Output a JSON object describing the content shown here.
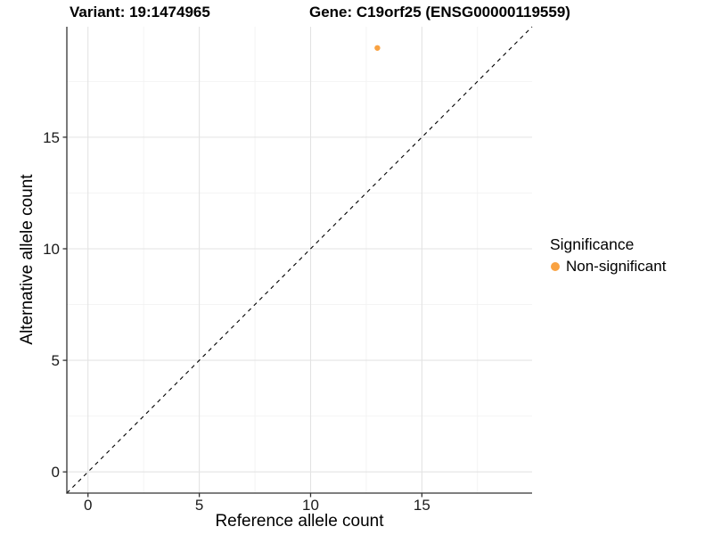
{
  "header": {
    "variant_title": "Variant: 19:1474965",
    "gene_title": "Gene: C19orf25 (ENSG00000119559)"
  },
  "chart_data": {
    "type": "scatter",
    "title": "Variant: 19:1474965   Gene: C19orf25 (ENSG00000119559)",
    "xlabel": "Reference allele count",
    "ylabel": "Alternative allele count",
    "xlim": [
      -0.95,
      19.95
    ],
    "ylim": [
      -0.95,
      19.95
    ],
    "xticks": [
      0,
      5,
      10,
      15
    ],
    "yticks": [
      0,
      5,
      10,
      15
    ],
    "minor_ticks_x": [
      2.5,
      7.5,
      12.5,
      17.5
    ],
    "minor_ticks_y": [
      2.5,
      7.5,
      12.5,
      17.5
    ],
    "grid": "on",
    "identity_line": {
      "style": "dashed",
      "slope": 1,
      "intercept": 0,
      "color": "#000000"
    },
    "series": [
      {
        "name": "Non-significant",
        "color": "#F9A242",
        "points": [
          {
            "x": 13,
            "y": 19
          }
        ]
      }
    ],
    "legend": {
      "title": "Significance",
      "position": "right",
      "items": [
        {
          "label": "Non-significant",
          "color": "#F9A242",
          "marker": "circle"
        }
      ]
    }
  }
}
